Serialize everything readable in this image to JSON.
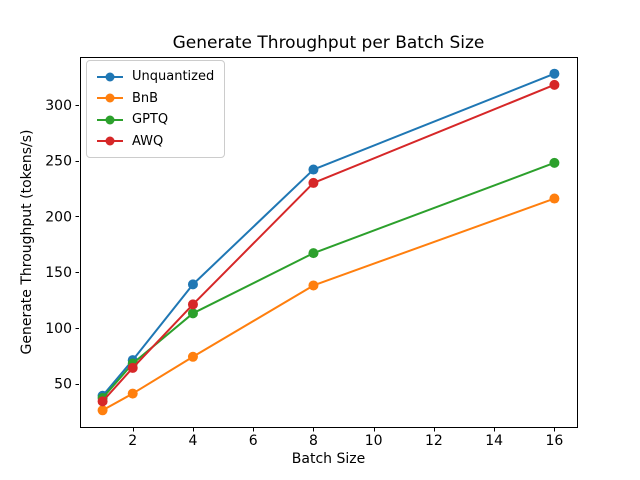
{
  "figure": {
    "background": "#ffffff",
    "frame_color": "#000000"
  },
  "chart_data": {
    "type": "line",
    "title": "Generate Throughput per Batch Size",
    "xlabel": "Batch Size",
    "ylabel": "Generate Throughput (tokens/s)",
    "x": [
      1,
      2,
      4,
      8,
      16
    ],
    "series": [
      {
        "name": "Unquantized",
        "color": "#1f77b4",
        "values": [
          39,
          71,
          139,
          242,
          328
        ]
      },
      {
        "name": "BnB",
        "color": "#ff7f0e",
        "values": [
          26,
          41,
          74,
          138,
          216
        ]
      },
      {
        "name": "GPTQ",
        "color": "#2ca02c",
        "values": [
          37,
          68,
          113,
          167,
          248
        ]
      },
      {
        "name": "AWQ",
        "color": "#d62728",
        "values": [
          34,
          64,
          121,
          230,
          318
        ]
      }
    ],
    "xticks": [
      2,
      4,
      6,
      8,
      10,
      12,
      14,
      16
    ],
    "yticks": [
      50,
      100,
      150,
      200,
      250,
      300
    ],
    "xlim": [
      0.25,
      16.75
    ],
    "ylim": [
      11,
      343
    ],
    "grid": false,
    "marker": "o",
    "line_width": 2,
    "marker_radius": 5,
    "legend_position": "upper-left"
  }
}
